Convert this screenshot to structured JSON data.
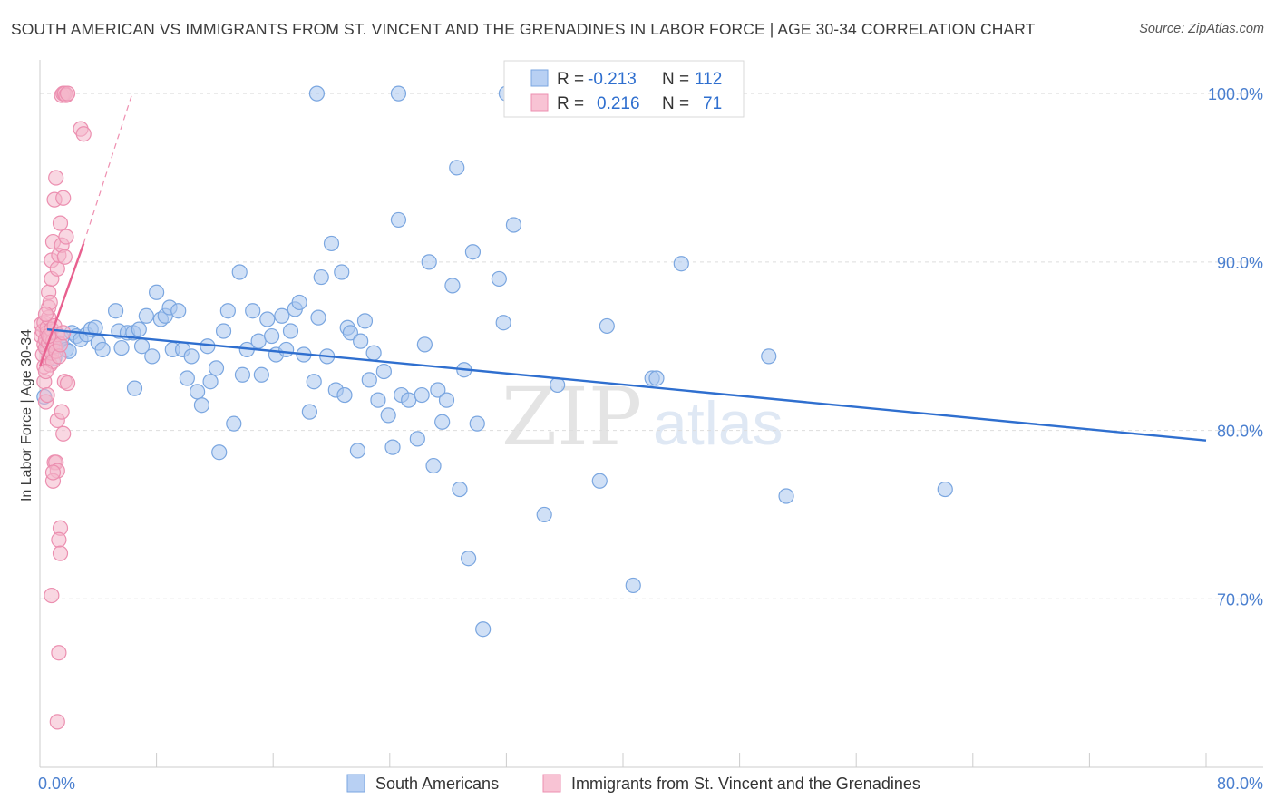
{
  "header": {
    "title": "SOUTH AMERICAN VS IMMIGRANTS FROM ST. VINCENT AND THE GRENADINES IN LABOR FORCE | AGE 30-34 CORRELATION CHART",
    "source": "Source: ZipAtlas.com"
  },
  "watermark": {
    "zip": "ZIP",
    "atlas": "atlas"
  },
  "legend_box": {
    "rows": [
      {
        "r_label": "R =",
        "r_value": "-0.213",
        "n_label": "N =",
        "n_value": "112"
      },
      {
        "r_label": "R =",
        "r_value": "0.216",
        "n_label": "N =",
        "n_value": "71"
      }
    ]
  },
  "bottom_legend": [
    {
      "label": "South Americans"
    },
    {
      "label": "Immigrants from St. Vincent and the Grenadines"
    }
  ],
  "colors": {
    "blue_fill": "#a9c6ee",
    "blue_stroke": "#7aa6e0",
    "blue_line": "#2f6fcf",
    "pink_fill": "#f4b6ca",
    "pink_stroke": "#ec8fb0",
    "pink_line": "#e8608f",
    "axis_text": "#4a7fcf",
    "grid": "#dddddd"
  },
  "chart_data": {
    "type": "scatter",
    "title": "SOUTH AMERICAN VS IMMIGRANTS FROM ST. VINCENT AND THE GRENADINES IN LABOR FORCE | AGE 30-34 CORRELATION CHART",
    "xlabel": "",
    "ylabel": "In Labor Force | Age 30-34",
    "xlim": [
      0,
      80
    ],
    "ylim": [
      60,
      102
    ],
    "x_ticks_labeled": [
      "0.0%",
      "80.0%"
    ],
    "y_ticks": [
      70,
      80,
      90,
      100
    ],
    "y_tick_labels": [
      "70.0%",
      "80.0%",
      "90.0%",
      "100.0%"
    ],
    "grid": "horizontal dashed",
    "legend": "bottom",
    "series": [
      {
        "name": "South Americans",
        "R": -0.213,
        "N": 112,
        "trend": {
          "x": [
            0.5,
            80
          ],
          "y": [
            86.0,
            79.4
          ]
        },
        "points": [
          [
            0.3,
            82.0
          ],
          [
            0.5,
            84.8
          ],
          [
            0.8,
            85.3
          ],
          [
            1.0,
            84.3
          ],
          [
            1.1,
            85.0
          ],
          [
            1.3,
            85.2
          ],
          [
            1.5,
            85.5
          ],
          [
            1.8,
            84.8
          ],
          [
            2.0,
            84.7
          ],
          [
            2.2,
            85.8
          ],
          [
            2.5,
            85.6
          ],
          [
            2.8,
            85.4
          ],
          [
            3.2,
            85.7
          ],
          [
            3.5,
            86.0
          ],
          [
            3.8,
            86.1
          ],
          [
            4.0,
            85.2
          ],
          [
            4.3,
            84.8
          ],
          [
            5.2,
            87.1
          ],
          [
            5.4,
            85.9
          ],
          [
            5.6,
            84.9
          ],
          [
            6.0,
            85.8
          ],
          [
            6.4,
            85.8
          ],
          [
            6.5,
            82.5
          ],
          [
            6.8,
            86.0
          ],
          [
            7.0,
            85.0
          ],
          [
            7.3,
            86.8
          ],
          [
            7.7,
            84.4
          ],
          [
            8.0,
            88.2
          ],
          [
            8.3,
            86.6
          ],
          [
            8.6,
            86.8
          ],
          [
            8.9,
            87.3
          ],
          [
            9.1,
            84.8
          ],
          [
            9.5,
            87.1
          ],
          [
            9.8,
            84.8
          ],
          [
            10.1,
            83.1
          ],
          [
            10.4,
            84.4
          ],
          [
            10.8,
            82.3
          ],
          [
            11.1,
            81.5
          ],
          [
            11.5,
            85.0
          ],
          [
            11.7,
            82.9
          ],
          [
            12.1,
            83.7
          ],
          [
            12.3,
            78.7
          ],
          [
            12.6,
            85.9
          ],
          [
            12.9,
            87.1
          ],
          [
            13.3,
            80.4
          ],
          [
            13.7,
            89.4
          ],
          [
            13.9,
            83.3
          ],
          [
            14.2,
            84.8
          ],
          [
            14.6,
            87.1
          ],
          [
            15.0,
            85.3
          ],
          [
            15.2,
            83.3
          ],
          [
            15.6,
            86.6
          ],
          [
            15.9,
            85.6
          ],
          [
            16.2,
            84.5
          ],
          [
            16.6,
            86.8
          ],
          [
            16.9,
            84.8
          ],
          [
            17.2,
            85.9
          ],
          [
            17.5,
            87.2
          ],
          [
            17.8,
            87.6
          ],
          [
            18.1,
            84.5
          ],
          [
            18.5,
            81.1
          ],
          [
            18.8,
            82.9
          ],
          [
            19.1,
            86.7
          ],
          [
            19.3,
            89.1
          ],
          [
            19.7,
            84.4
          ],
          [
            20.0,
            91.1
          ],
          [
            20.3,
            82.4
          ],
          [
            20.7,
            89.4
          ],
          [
            20.9,
            82.1
          ],
          [
            21.1,
            86.1
          ],
          [
            21.3,
            85.8
          ],
          [
            21.8,
            78.8
          ],
          [
            22.0,
            85.3
          ],
          [
            22.3,
            86.5
          ],
          [
            22.6,
            83.0
          ],
          [
            22.9,
            84.6
          ],
          [
            23.2,
            81.8
          ],
          [
            23.6,
            83.5
          ],
          [
            23.9,
            80.9
          ],
          [
            24.2,
            79.0
          ],
          [
            24.6,
            92.5
          ],
          [
            24.8,
            82.1
          ],
          [
            25.3,
            81.8
          ],
          [
            25.9,
            79.5
          ],
          [
            26.2,
            82.1
          ],
          [
            26.4,
            85.1
          ],
          [
            26.7,
            90.0
          ],
          [
            27.0,
            77.9
          ],
          [
            27.3,
            82.4
          ],
          [
            27.6,
            80.5
          ],
          [
            27.9,
            81.8
          ],
          [
            28.3,
            88.6
          ],
          [
            28.6,
            95.6
          ],
          [
            28.8,
            76.5
          ],
          [
            29.1,
            83.6
          ],
          [
            29.4,
            72.4
          ],
          [
            29.7,
            90.6
          ],
          [
            30.0,
            80.4
          ],
          [
            30.4,
            68.2
          ],
          [
            31.5,
            89.0
          ],
          [
            31.8,
            86.4
          ],
          [
            32.5,
            92.2
          ],
          [
            34.6,
            75.0
          ],
          [
            35.5,
            82.7
          ],
          [
            38.4,
            77.0
          ],
          [
            38.9,
            86.2
          ],
          [
            40.7,
            70.8
          ],
          [
            42.0,
            83.1
          ],
          [
            42.3,
            83.1
          ],
          [
            44.0,
            89.9
          ],
          [
            50.0,
            84.4
          ],
          [
            51.2,
            76.1
          ],
          [
            62.1,
            76.5
          ],
          [
            19.0,
            100.0
          ],
          [
            24.6,
            100.0
          ],
          [
            32.0,
            100.0
          ]
        ]
      },
      {
        "name": "Immigrants from St. Vincent and the Grenadines",
        "R": 0.216,
        "N": 71,
        "trend": {
          "x": [
            0.0,
            3.0
          ],
          "y": [
            83.8,
            91.1
          ]
        },
        "trend_extension": {
          "x": [
            3.0,
            6.3
          ],
          "y": [
            91.1,
            99.9
          ]
        },
        "points": [
          [
            0.1,
            85.6
          ],
          [
            0.1,
            86.3
          ],
          [
            0.2,
            84.5
          ],
          [
            0.2,
            85.9
          ],
          [
            0.3,
            83.8
          ],
          [
            0.3,
            85.1
          ],
          [
            0.3,
            86.4
          ],
          [
            0.4,
            84.9
          ],
          [
            0.4,
            85.4
          ],
          [
            0.5,
            85.8
          ],
          [
            0.5,
            86.1
          ],
          [
            0.6,
            84.3
          ],
          [
            0.6,
            85.2
          ],
          [
            0.6,
            86.7
          ],
          [
            0.7,
            83.9
          ],
          [
            0.7,
            85.5
          ],
          [
            0.8,
            84.6
          ],
          [
            0.8,
            86.0
          ],
          [
            0.9,
            85.3
          ],
          [
            0.9,
            84.1
          ],
          [
            1.0,
            85.0
          ],
          [
            1.0,
            86.2
          ],
          [
            1.1,
            84.7
          ],
          [
            1.2,
            85.7
          ],
          [
            1.3,
            84.4
          ],
          [
            1.4,
            85.1
          ],
          [
            0.3,
            82.9
          ],
          [
            0.4,
            81.7
          ],
          [
            0.5,
            82.1
          ],
          [
            0.6,
            87.3
          ],
          [
            0.6,
            88.2
          ],
          [
            0.7,
            87.6
          ],
          [
            0.8,
            89.0
          ],
          [
            0.8,
            90.1
          ],
          [
            0.9,
            91.2
          ],
          [
            1.0,
            93.7
          ],
          [
            1.1,
            95.0
          ],
          [
            1.2,
            89.6
          ],
          [
            1.3,
            90.4
          ],
          [
            1.4,
            92.3
          ],
          [
            1.5,
            91.0
          ],
          [
            1.6,
            93.8
          ],
          [
            1.7,
            90.3
          ],
          [
            1.8,
            91.5
          ],
          [
            2.8,
            97.9
          ],
          [
            3.0,
            97.6
          ],
          [
            1.2,
            80.6
          ],
          [
            1.5,
            81.1
          ],
          [
            1.6,
            79.8
          ],
          [
            1.0,
            78.1
          ],
          [
            1.1,
            78.1
          ],
          [
            1.2,
            77.6
          ],
          [
            0.9,
            77.0
          ],
          [
            0.9,
            77.5
          ],
          [
            1.4,
            74.2
          ],
          [
            1.3,
            73.5
          ],
          [
            1.4,
            72.7
          ],
          [
            0.8,
            70.2
          ],
          [
            1.3,
            66.8
          ],
          [
            1.2,
            62.7
          ],
          [
            1.7,
            82.9
          ],
          [
            1.9,
            82.8
          ],
          [
            0.4,
            83.5
          ],
          [
            0.6,
            85.6
          ],
          [
            0.4,
            86.9
          ],
          [
            1.5,
            99.9
          ],
          [
            1.6,
            100.0
          ],
          [
            1.7,
            100.0
          ],
          [
            1.8,
            99.9
          ],
          [
            1.9,
            100.0
          ],
          [
            1.6,
            85.8
          ]
        ]
      }
    ]
  }
}
